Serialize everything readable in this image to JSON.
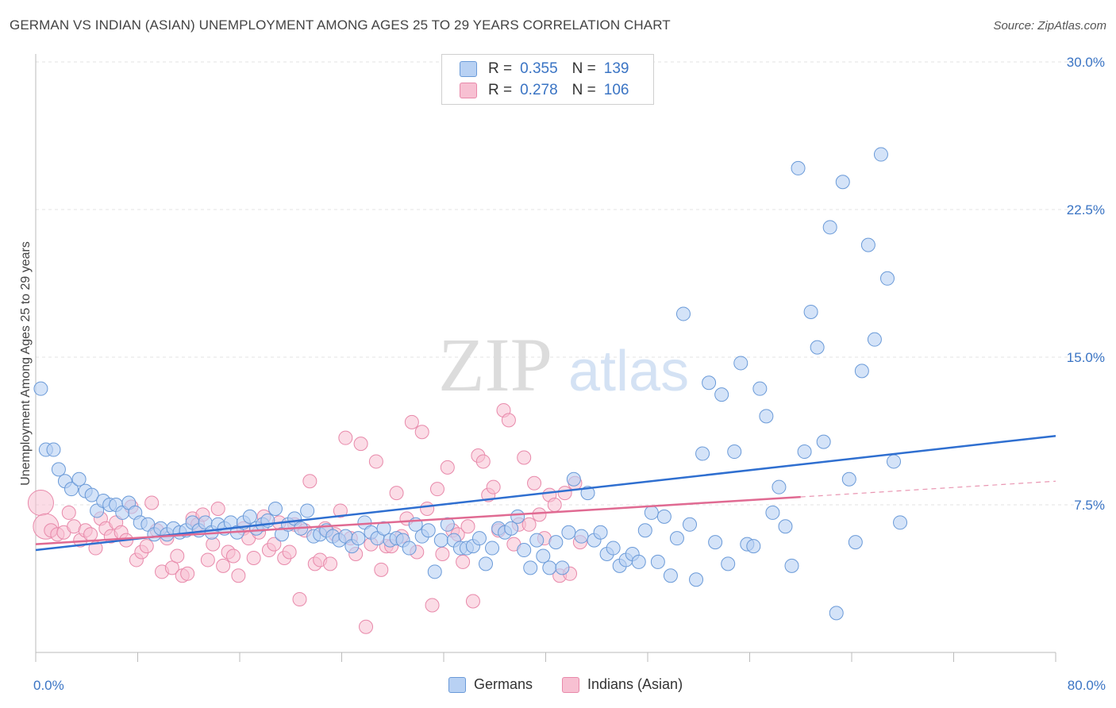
{
  "title": "GERMAN VS INDIAN (ASIAN) UNEMPLOYMENT AMONG AGES 25 TO 29 YEARS CORRELATION CHART",
  "source": "Source: ZipAtlas.com",
  "watermark": {
    "zip": "ZIP",
    "atlas": "atlas"
  },
  "legend": {
    "rows": [
      {
        "r_label": "R =",
        "r_value": "0.355",
        "n_label": "N =",
        "n_value": "139"
      },
      {
        "r_label": "R =",
        "r_value": "0.278",
        "n_label": "N =",
        "n_value": "106"
      }
    ]
  },
  "bottom_legend": {
    "germans": "Germans",
    "indians": "Indians (Asian)"
  },
  "colors": {
    "blue_fill": "#b8d1f3",
    "blue_stroke": "#6a9ad8",
    "blue_line": "#2f6fd0",
    "pink_fill": "#f7c0d2",
    "pink_stroke": "#e889aa",
    "pink_line": "#e06a92",
    "tick_text": "#3a74c4",
    "grid": "#e3e3e3"
  },
  "chart_data": {
    "type": "scatter",
    "title": "GERMAN VS INDIAN (ASIAN) UNEMPLOYMENT AMONG AGES 25 TO 29 YEARS CORRELATION CHART",
    "xlabel": "",
    "ylabel": "Unemployment Among Ages 25 to 29 years",
    "xlim": [
      0,
      80
    ],
    "ylim": [
      0,
      30
    ],
    "x_tick_labels": [
      "0.0%",
      "80.0%"
    ],
    "y_ticks": [
      7.5,
      15.0,
      22.5,
      30.0
    ],
    "y_tick_labels": [
      "7.5%",
      "15.0%",
      "22.5%",
      "30.0%"
    ],
    "grid": true,
    "legend_position": "top-center",
    "series": [
      {
        "name": "Germans",
        "r": 0.355,
        "n": 139,
        "trend": {
          "x": [
            0,
            80
          ],
          "y": [
            5.2,
            11.0
          ]
        },
        "points": [
          [
            0.4,
            13.4
          ],
          [
            0.8,
            10.3
          ],
          [
            1.4,
            10.3
          ],
          [
            1.8,
            9.3
          ],
          [
            2.3,
            8.7
          ],
          [
            2.8,
            8.3
          ],
          [
            3.4,
            8.8
          ],
          [
            3.9,
            8.2
          ],
          [
            4.4,
            8.0
          ],
          [
            4.8,
            7.2
          ],
          [
            5.3,
            7.7
          ],
          [
            5.8,
            7.5
          ],
          [
            6.3,
            7.5
          ],
          [
            6.8,
            7.1
          ],
          [
            7.3,
            7.6
          ],
          [
            7.8,
            7.1
          ],
          [
            8.2,
            6.6
          ],
          [
            8.8,
            6.5
          ],
          [
            9.3,
            6.0
          ],
          [
            9.8,
            6.3
          ],
          [
            10.3,
            6.0
          ],
          [
            10.8,
            6.3
          ],
          [
            11.3,
            6.1
          ],
          [
            11.8,
            6.2
          ],
          [
            12.3,
            6.6
          ],
          [
            12.8,
            6.2
          ],
          [
            13.3,
            6.6
          ],
          [
            13.8,
            6.1
          ],
          [
            14.3,
            6.5
          ],
          [
            14.8,
            6.3
          ],
          [
            15.3,
            6.6
          ],
          [
            15.8,
            6.1
          ],
          [
            16.3,
            6.6
          ],
          [
            16.8,
            6.9
          ],
          [
            17.3,
            6.3
          ],
          [
            17.8,
            6.5
          ],
          [
            18.2,
            6.7
          ],
          [
            18.8,
            7.3
          ],
          [
            19.3,
            6.0
          ],
          [
            19.8,
            6.5
          ],
          [
            20.3,
            6.8
          ],
          [
            20.8,
            6.3
          ],
          [
            21.3,
            7.2
          ],
          [
            21.8,
            5.9
          ],
          [
            22.3,
            6.0
          ],
          [
            22.8,
            6.2
          ],
          [
            23.3,
            5.9
          ],
          [
            23.8,
            5.7
          ],
          [
            24.3,
            5.9
          ],
          [
            24.8,
            5.4
          ],
          [
            25.3,
            5.8
          ],
          [
            25.8,
            6.6
          ],
          [
            26.3,
            6.1
          ],
          [
            26.8,
            5.8
          ],
          [
            27.3,
            6.3
          ],
          [
            27.8,
            5.7
          ],
          [
            28.3,
            5.8
          ],
          [
            28.8,
            5.7
          ],
          [
            29.3,
            5.3
          ],
          [
            29.8,
            6.5
          ],
          [
            30.3,
            5.9
          ],
          [
            30.8,
            6.2
          ],
          [
            31.3,
            4.1
          ],
          [
            31.8,
            5.7
          ],
          [
            32.3,
            6.5
          ],
          [
            32.8,
            5.7
          ],
          [
            33.3,
            5.3
          ],
          [
            33.8,
            5.3
          ],
          [
            34.3,
            5.4
          ],
          [
            34.8,
            5.8
          ],
          [
            35.3,
            4.5
          ],
          [
            35.8,
            5.3
          ],
          [
            36.3,
            6.3
          ],
          [
            36.8,
            6.1
          ],
          [
            37.3,
            6.3
          ],
          [
            37.8,
            6.9
          ],
          [
            38.3,
            5.2
          ],
          [
            38.8,
            4.3
          ],
          [
            39.3,
            5.7
          ],
          [
            39.8,
            4.9
          ],
          [
            40.3,
            4.3
          ],
          [
            40.8,
            5.6
          ],
          [
            41.3,
            4.3
          ],
          [
            41.8,
            6.1
          ],
          [
            42.2,
            8.8
          ],
          [
            42.8,
            5.9
          ],
          [
            43.3,
            8.1
          ],
          [
            43.8,
            5.7
          ],
          [
            44.3,
            6.1
          ],
          [
            44.8,
            5.0
          ],
          [
            45.3,
            5.3
          ],
          [
            45.8,
            4.4
          ],
          [
            46.3,
            4.7
          ],
          [
            46.8,
            5.0
          ],
          [
            47.3,
            4.6
          ],
          [
            47.8,
            6.2
          ],
          [
            48.3,
            7.1
          ],
          [
            48.8,
            4.6
          ],
          [
            49.3,
            6.9
          ],
          [
            49.8,
            3.9
          ],
          [
            50.3,
            5.8
          ],
          [
            50.8,
            17.2
          ],
          [
            51.3,
            6.5
          ],
          [
            51.8,
            3.7
          ],
          [
            52.3,
            10.1
          ],
          [
            52.8,
            13.7
          ],
          [
            53.3,
            5.6
          ],
          [
            53.8,
            13.1
          ],
          [
            54.3,
            4.5
          ],
          [
            54.8,
            10.2
          ],
          [
            55.3,
            14.7
          ],
          [
            55.8,
            5.5
          ],
          [
            56.3,
            5.4
          ],
          [
            56.8,
            13.4
          ],
          [
            57.3,
            12.0
          ],
          [
            57.8,
            7.1
          ],
          [
            58.3,
            8.4
          ],
          [
            58.8,
            6.4
          ],
          [
            59.3,
            4.4
          ],
          [
            59.8,
            24.6
          ],
          [
            60.3,
            10.2
          ],
          [
            60.8,
            17.3
          ],
          [
            61.3,
            15.5
          ],
          [
            61.8,
            10.7
          ],
          [
            62.3,
            21.6
          ],
          [
            62.8,
            2.0
          ],
          [
            63.3,
            23.9
          ],
          [
            63.8,
            8.8
          ],
          [
            64.3,
            5.6
          ],
          [
            64.8,
            14.3
          ],
          [
            65.3,
            20.7
          ],
          [
            65.8,
            15.9
          ],
          [
            66.3,
            25.3
          ],
          [
            66.8,
            19.0
          ],
          [
            67.3,
            9.7
          ],
          [
            67.8,
            6.6
          ]
        ]
      },
      {
        "name": "Indians (Asian)",
        "r": 0.278,
        "n": 106,
        "trend": {
          "x": [
            0,
            60
          ],
          "y": [
            5.5,
            7.9
          ]
        },
        "trend_dashed": {
          "x": [
            60,
            80
          ],
          "y": [
            7.9,
            8.7
          ]
        },
        "points": [
          [
            0.4,
            7.6
          ],
          [
            0.8,
            6.4
          ],
          [
            1.2,
            6.2
          ],
          [
            1.7,
            6.0
          ],
          [
            2.2,
            6.1
          ],
          [
            2.6,
            7.1
          ],
          [
            3.0,
            6.4
          ],
          [
            3.5,
            5.7
          ],
          [
            3.9,
            6.2
          ],
          [
            4.3,
            6.0
          ],
          [
            4.7,
            5.3
          ],
          [
            5.1,
            6.8
          ],
          [
            5.5,
            6.3
          ],
          [
            5.9,
            5.9
          ],
          [
            6.3,
            6.6
          ],
          [
            6.7,
            6.1
          ],
          [
            7.1,
            5.7
          ],
          [
            7.5,
            7.4
          ],
          [
            7.9,
            4.7
          ],
          [
            8.3,
            5.1
          ],
          [
            8.7,
            5.4
          ],
          [
            9.1,
            7.6
          ],
          [
            9.5,
            6.2
          ],
          [
            9.9,
            4.1
          ],
          [
            10.3,
            5.8
          ],
          [
            10.7,
            4.3
          ],
          [
            11.1,
            4.9
          ],
          [
            11.5,
            3.9
          ],
          [
            11.9,
            4.0
          ],
          [
            12.3,
            6.8
          ],
          [
            12.7,
            6.5
          ],
          [
            13.1,
            7.0
          ],
          [
            13.5,
            4.7
          ],
          [
            13.9,
            5.5
          ],
          [
            14.3,
            7.3
          ],
          [
            14.7,
            4.4
          ],
          [
            15.1,
            5.1
          ],
          [
            15.5,
            4.9
          ],
          [
            15.9,
            3.9
          ],
          [
            16.3,
            6.3
          ],
          [
            16.7,
            5.8
          ],
          [
            17.1,
            4.8
          ],
          [
            17.5,
            6.1
          ],
          [
            17.9,
            6.9
          ],
          [
            18.3,
            5.2
          ],
          [
            18.7,
            5.5
          ],
          [
            19.1,
            6.6
          ],
          [
            19.5,
            4.8
          ],
          [
            19.9,
            5.1
          ],
          [
            20.3,
            6.5
          ],
          [
            20.7,
            2.7
          ],
          [
            21.1,
            6.2
          ],
          [
            21.5,
            8.7
          ],
          [
            21.9,
            4.5
          ],
          [
            22.3,
            4.7
          ],
          [
            22.7,
            6.3
          ],
          [
            23.1,
            4.5
          ],
          [
            23.5,
            6.0
          ],
          [
            23.9,
            7.2
          ],
          [
            24.3,
            10.9
          ],
          [
            24.7,
            5.8
          ],
          [
            25.1,
            5.0
          ],
          [
            25.5,
            10.6
          ],
          [
            25.9,
            1.3
          ],
          [
            26.3,
            5.5
          ],
          [
            26.7,
            9.7
          ],
          [
            27.1,
            4.2
          ],
          [
            27.5,
            5.4
          ],
          [
            27.9,
            5.4
          ],
          [
            28.3,
            8.1
          ],
          [
            28.7,
            5.9
          ],
          [
            29.1,
            6.8
          ],
          [
            29.5,
            11.7
          ],
          [
            29.9,
            5.1
          ],
          [
            30.3,
            11.2
          ],
          [
            30.7,
            7.3
          ],
          [
            31.1,
            2.4
          ],
          [
            31.5,
            8.3
          ],
          [
            31.9,
            5.0
          ],
          [
            32.3,
            9.4
          ],
          [
            32.7,
            6.2
          ],
          [
            33.1,
            6.0
          ],
          [
            33.5,
            4.6
          ],
          [
            33.9,
            6.4
          ],
          [
            34.3,
            2.6
          ],
          [
            34.7,
            10.0
          ],
          [
            35.1,
            9.7
          ],
          [
            35.5,
            8.0
          ],
          [
            35.9,
            8.4
          ],
          [
            36.3,
            6.2
          ],
          [
            36.7,
            12.3
          ],
          [
            37.1,
            11.8
          ],
          [
            37.5,
            5.5
          ],
          [
            37.9,
            6.5
          ],
          [
            38.3,
            9.9
          ],
          [
            38.7,
            6.5
          ],
          [
            39.1,
            8.6
          ],
          [
            39.5,
            7.0
          ],
          [
            39.9,
            5.8
          ],
          [
            40.3,
            8.0
          ],
          [
            40.7,
            7.5
          ],
          [
            41.1,
            3.9
          ],
          [
            41.5,
            8.1
          ],
          [
            41.9,
            4.0
          ],
          [
            42.3,
            8.6
          ],
          [
            42.7,
            5.6
          ]
        ]
      }
    ]
  }
}
